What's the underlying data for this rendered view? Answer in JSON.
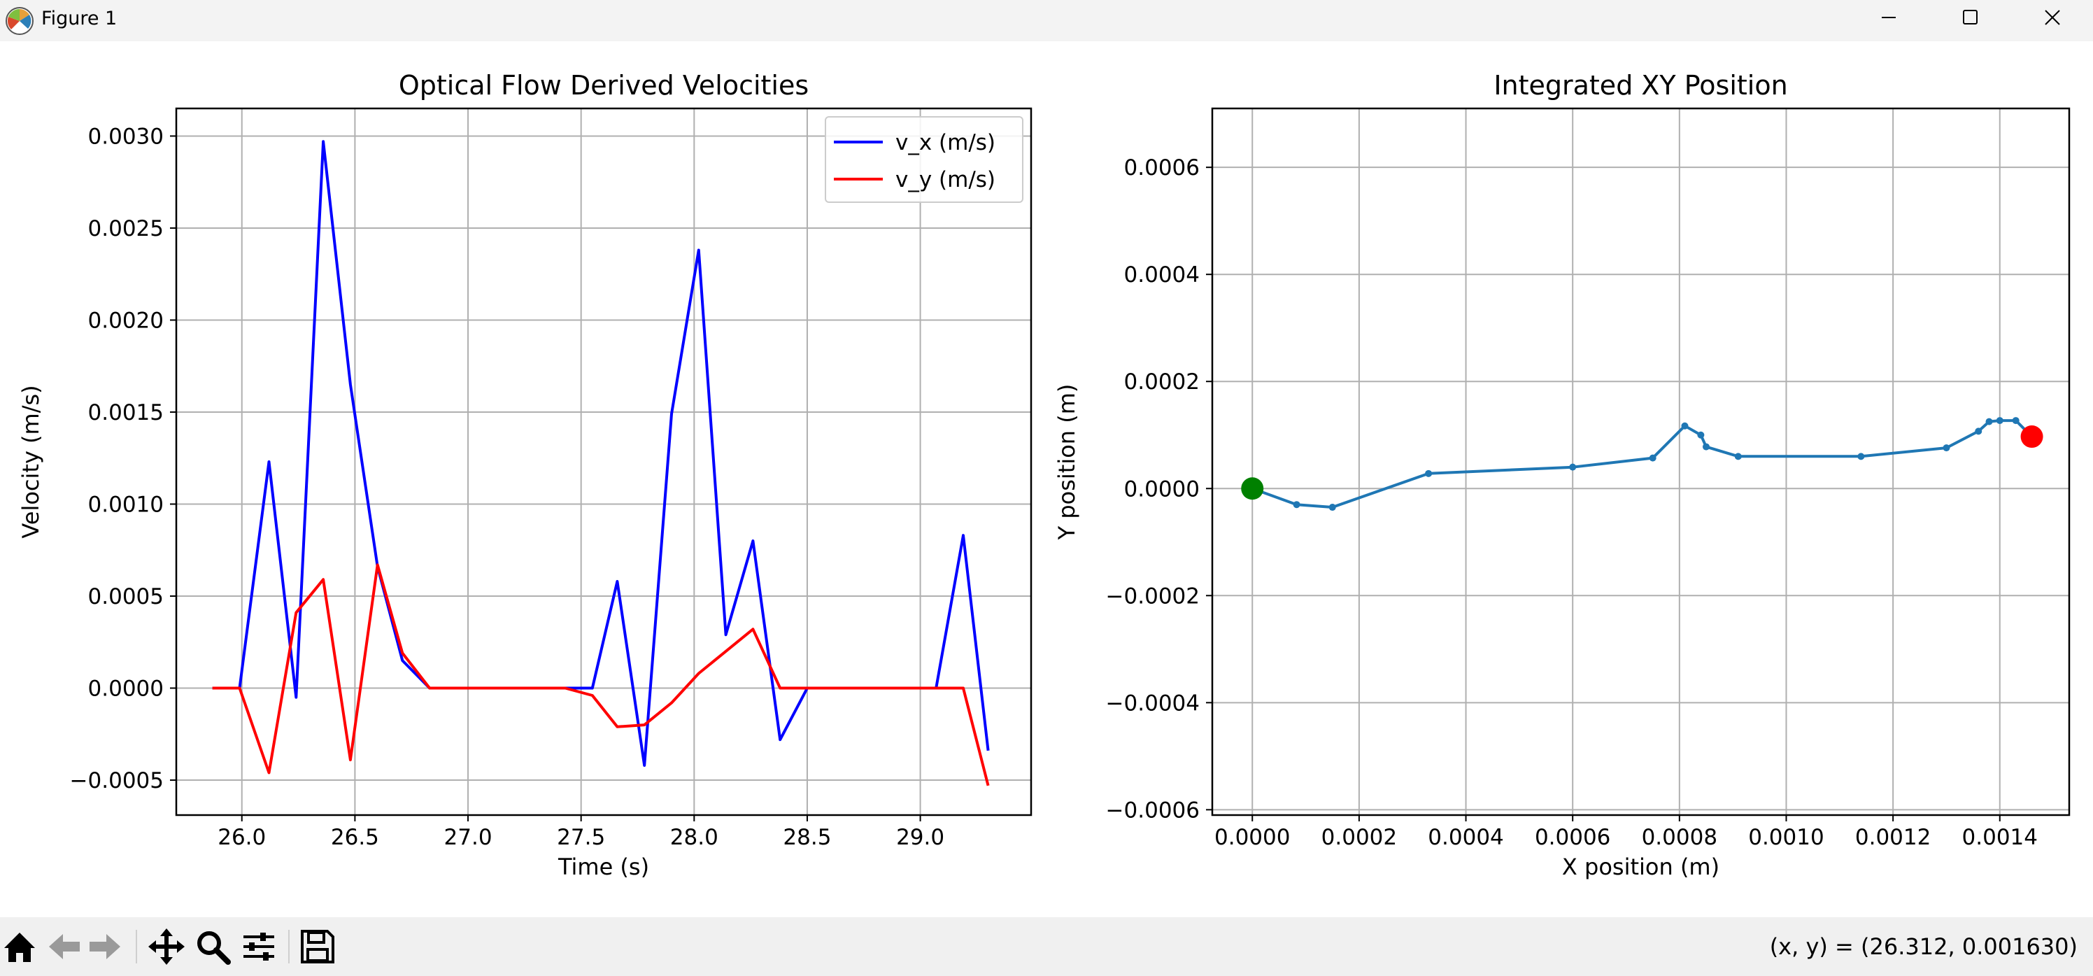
{
  "window": {
    "title": "Figure 1",
    "minimize_icon": "minimize-icon",
    "maximize_icon": "maximize-icon",
    "close_icon": "close-icon"
  },
  "toolbar": {
    "tools": [
      "home-icon",
      "back-arrow-icon",
      "forward-arrow-icon",
      "pan-icon",
      "zoom-icon",
      "configure-subplots-icon",
      "save-icon"
    ],
    "coordinates": "(x, y) = (26.312, 0.001630)"
  },
  "chart_data": [
    {
      "type": "line",
      "title": "Optical Flow Derived Velocities",
      "xlabel": "Time (s)",
      "ylabel": "Velocity (m/s)",
      "xlim": [
        25.71,
        29.49
      ],
      "ylim": [
        -0.00069,
        0.00315
      ],
      "xticks": [
        26.0,
        26.5,
        27.0,
        27.5,
        28.0,
        28.5,
        29.0
      ],
      "xticklabels": [
        "26.0",
        "26.5",
        "27.0",
        "27.5",
        "28.0",
        "28.5",
        "29.0"
      ],
      "yticks": [
        -0.0005,
        0.0,
        0.0005,
        0.001,
        0.0015,
        0.002,
        0.0025,
        0.003
      ],
      "yticklabels": [
        "−0.0005",
        "0.0000",
        "0.0005",
        "0.0010",
        "0.0015",
        "0.0020",
        "0.0025",
        "0.0030"
      ],
      "grid": true,
      "legend": "top-right",
      "series": [
        {
          "name": "v_x (m/s)",
          "color": "#0000ff",
          "x": [
            25.87,
            25.99,
            26.12,
            26.24,
            26.36,
            26.48,
            26.6,
            26.71,
            26.83,
            26.95,
            27.07,
            27.19,
            27.31,
            27.43,
            27.55,
            27.66,
            27.78,
            27.9,
            28.02,
            28.14,
            28.26,
            28.38,
            28.5,
            28.62,
            28.74,
            28.86,
            28.98,
            29.07,
            29.19,
            29.3
          ],
          "y": [
            0.0,
            0.0,
            0.00123,
            -5e-05,
            0.00297,
            0.00165,
            0.00066,
            0.00015,
            0.0,
            0.0,
            0.0,
            0.0,
            0.0,
            0.0,
            0.0,
            0.00058,
            -0.00042,
            0.00149,
            0.00238,
            0.00029,
            0.0008,
            -0.00028,
            0.0,
            0.0,
            0.0,
            0.0,
            0.0,
            0.0,
            0.00083,
            -0.00034
          ]
        },
        {
          "name": "v_y (m/s)",
          "color": "#ff0000",
          "x": [
            25.87,
            25.99,
            26.12,
            26.24,
            26.36,
            26.48,
            26.6,
            26.71,
            26.83,
            26.95,
            27.07,
            27.19,
            27.31,
            27.43,
            27.55,
            27.66,
            27.78,
            27.9,
            28.02,
            28.14,
            28.26,
            28.38,
            28.5,
            28.62,
            28.74,
            28.86,
            28.98,
            29.07,
            29.19,
            29.3
          ],
          "y": [
            0.0,
            0.0,
            -0.00046,
            0.00041,
            0.00059,
            -0.00039,
            0.00067,
            0.00019,
            0.0,
            0.0,
            0.0,
            0.0,
            0.0,
            0.0,
            -4e-05,
            -0.00021,
            -0.0002,
            -8e-05,
            8e-05,
            0.0002,
            0.00032,
            0.0,
            0.0,
            0.0,
            0.0,
            0.0,
            0.0,
            0.0,
            0.0,
            -0.00053
          ]
        }
      ]
    },
    {
      "type": "line",
      "title": "Integrated XY Position",
      "xlabel": "X position (m)",
      "ylabel": "Y position (m)",
      "xlim": [
        -7.5e-05,
        0.00153
      ],
      "ylim": [
        -0.00061,
        0.00071
      ],
      "xticks": [
        0.0,
        0.0002,
        0.0004,
        0.0006,
        0.0008,
        0.001,
        0.0012,
        0.0014
      ],
      "xticklabels": [
        "0.0000",
        "0.0002",
        "0.0004",
        "0.0006",
        "0.0008",
        "0.0010",
        "0.0012",
        "0.0014"
      ],
      "yticks": [
        -0.0006,
        -0.0004,
        -0.0002,
        0.0,
        0.0002,
        0.0004,
        0.0006
      ],
      "yticklabels": [
        "−0.0006",
        "−0.0004",
        "−0.0002",
        "0.0000",
        "0.0002",
        "0.0004",
        "0.0006"
      ],
      "grid": true,
      "series": [
        {
          "color": "#1f77b4",
          "x": [
            0.0,
            8.3e-05,
            0.00015,
            0.00033,
            0.0006,
            0.00075,
            0.00081,
            0.00084,
            0.00085,
            0.00091,
            0.00114,
            0.0013,
            0.00136,
            0.00138,
            0.0014,
            0.00143,
            0.00146
          ],
          "y": [
            0.0,
            -3e-05,
            -3.5e-05,
            2.8e-05,
            4e-05,
            5.7e-05,
            0.000117,
            0.0001,
            7.8e-05,
            6e-05,
            6e-05,
            7.6e-05,
            0.000107,
            0.000125,
            0.000127,
            0.000127,
            9.7e-05
          ]
        }
      ],
      "start_marker": {
        "x": 0.0,
        "y": 0.0,
        "color": "#008000"
      },
      "end_marker": {
        "x": 0.00146,
        "y": 9.7e-05,
        "color": "#ff0000"
      }
    }
  ]
}
